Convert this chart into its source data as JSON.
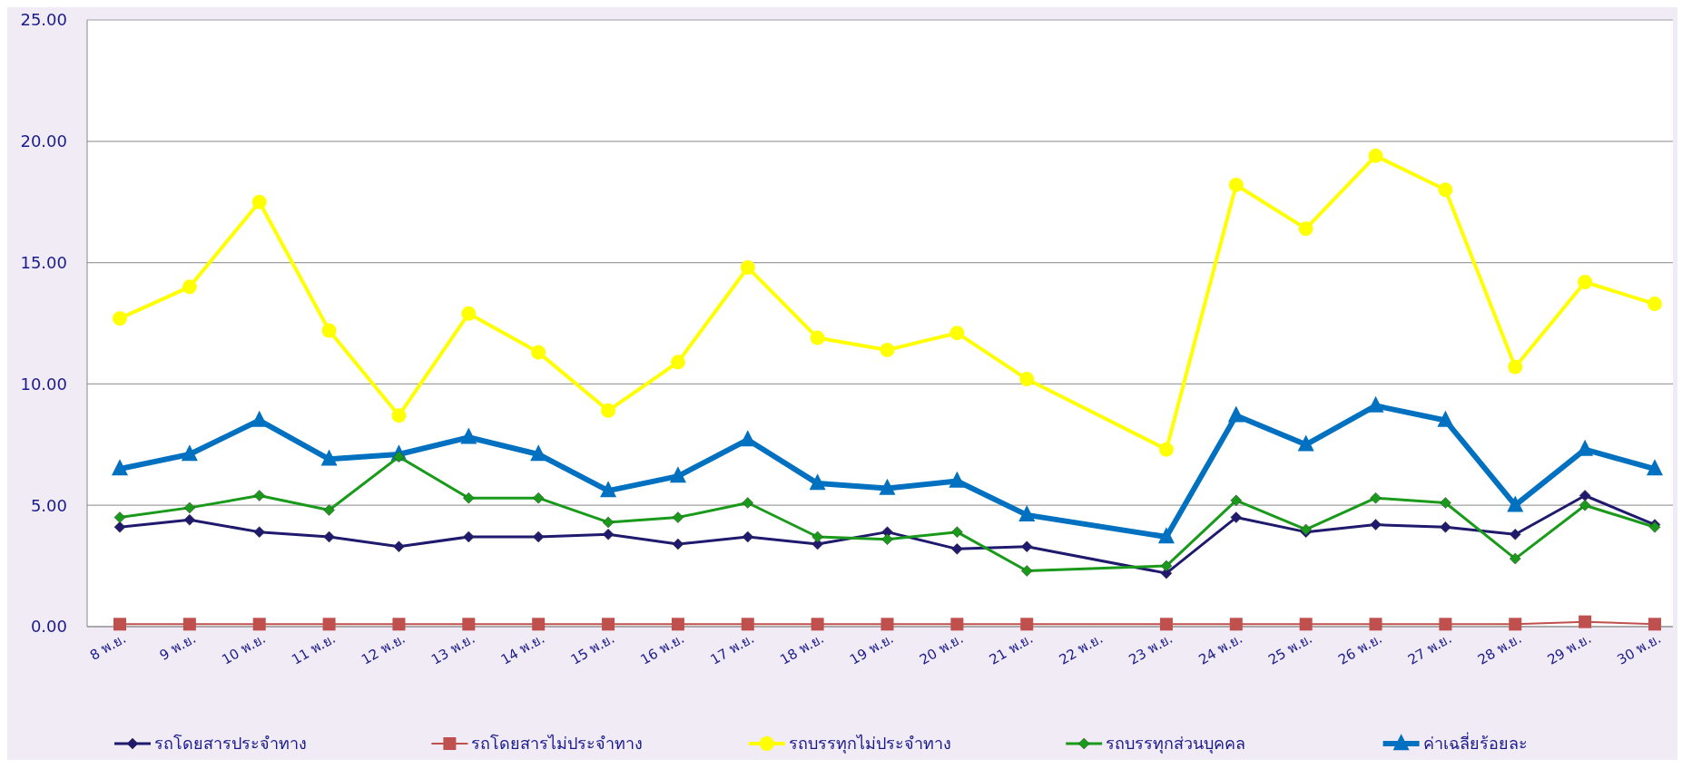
{
  "chart_data": {
    "type": "line",
    "categories": [
      "8 พ.ย.",
      "9 พ.ย.",
      "10 พ.ย.",
      "11 พ.ย.",
      "12 พ.ย.",
      "13 พ.ย.",
      "14 พ.ย.",
      "15 พ.ย.",
      "16 พ.ย.",
      "17 พ.ย.",
      "18 พ.ย.",
      "19 พ.ย.",
      "20 พ.ย.",
      "21 พ.ย.",
      "22 พ.ย.",
      "23 พ.ย.",
      "24 พ.ย.",
      "25 พ.ย.",
      "26 พ.ย.",
      "27 พ.ย.",
      "28 พ.ย.",
      "29 พ.ย.",
      "30 พ.ย."
    ],
    "series": [
      {
        "name": "รถโดยสารประจำทาง",
        "color": "#1f1a6e",
        "marker": "diamond",
        "values": [
          4.1,
          4.4,
          3.9,
          3.7,
          3.3,
          3.7,
          3.7,
          3.8,
          3.4,
          3.7,
          3.4,
          3.9,
          3.2,
          3.3,
          null,
          2.2,
          4.5,
          3.9,
          4.2,
          4.1,
          3.8,
          5.4,
          4.2
        ]
      },
      {
        "name": "รถโดยสารไม่ประจำทาง",
        "color": "#c0504d",
        "marker": "square",
        "values": [
          0.1,
          0.1,
          0.1,
          0.1,
          0.1,
          0.1,
          0.1,
          0.1,
          0.1,
          0.1,
          0.1,
          0.1,
          0.1,
          0.1,
          null,
          0.1,
          0.1,
          0.1,
          0.1,
          0.1,
          0.1,
          0.2,
          0.1
        ]
      },
      {
        "name": "รถบรรทุกไม่ประจำทาง",
        "color": "#ffff00",
        "marker": "circle",
        "values": [
          12.7,
          14.0,
          17.5,
          12.2,
          8.7,
          12.9,
          11.3,
          8.9,
          10.9,
          14.8,
          11.9,
          11.4,
          12.1,
          10.2,
          null,
          7.3,
          18.2,
          16.4,
          19.4,
          18.0,
          10.7,
          14.2,
          13.3
        ]
      },
      {
        "name": "รถบรรทุกส่วนบุคคล",
        "color": "#1a9a1a",
        "marker": "diamond",
        "values": [
          4.5,
          4.9,
          5.4,
          4.8,
          7.0,
          5.3,
          5.3,
          4.3,
          4.5,
          5.1,
          3.7,
          3.6,
          3.9,
          2.3,
          null,
          2.5,
          5.2,
          4.0,
          5.3,
          5.1,
          2.8,
          5.0,
          4.1
        ]
      },
      {
        "name": "ค่าเฉลี่ยร้อยละ",
        "color": "#0070c0",
        "marker": "triangle",
        "values": [
          6.5,
          7.1,
          8.5,
          6.9,
          7.1,
          7.8,
          7.1,
          5.6,
          6.2,
          7.7,
          5.9,
          5.7,
          6.0,
          4.6,
          null,
          3.7,
          8.7,
          7.5,
          9.1,
          8.5,
          5.0,
          7.3,
          6.5
        ]
      }
    ],
    "ylim": [
      0,
      25
    ],
    "yticks": [
      {
        "value": 0,
        "label": "0.00"
      },
      {
        "value": 5,
        "label": "5.00"
      },
      {
        "value": 10,
        "label": "10.00"
      },
      {
        "value": 15,
        "label": "15.00"
      },
      {
        "value": 20,
        "label": "20.00"
      },
      {
        "value": 25,
        "label": "25.00"
      }
    ],
    "grid": "y",
    "legend": "bottom"
  }
}
